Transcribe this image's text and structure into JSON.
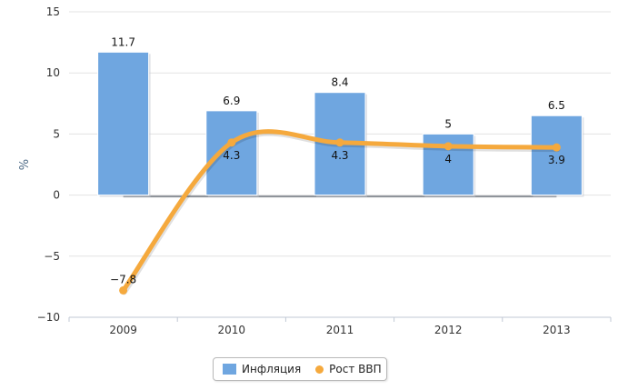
{
  "chart_data": {
    "type": "bar",
    "title": "",
    "xlabel": "",
    "ylabel": "%",
    "categories": [
      "2009",
      "2010",
      "2011",
      "2012",
      "2013"
    ],
    "ylim": [
      -10,
      15
    ],
    "yticks": [
      "15",
      "10",
      "5",
      "0",
      "−5",
      "−10"
    ],
    "ytick_values": [
      15,
      10,
      5,
      0,
      -5,
      -10
    ],
    "grid": true,
    "legend_position": "bottom-center",
    "series": [
      {
        "name": "Инфляция",
        "type": "bar",
        "color": "#6fa6e0",
        "values": [
          11.7,
          6.9,
          8.4,
          5,
          6.5
        ],
        "labels": [
          "11.7",
          "6.9",
          "8.4",
          "5",
          "6.5"
        ]
      },
      {
        "name": "Рост ВВП",
        "type": "line",
        "color": "#f5a93d",
        "values": [
          -7.8,
          4.3,
          4.3,
          4,
          3.9
        ],
        "labels": [
          "−7.8",
          "4.3",
          "4.3",
          "4",
          "3.9"
        ]
      }
    ]
  }
}
